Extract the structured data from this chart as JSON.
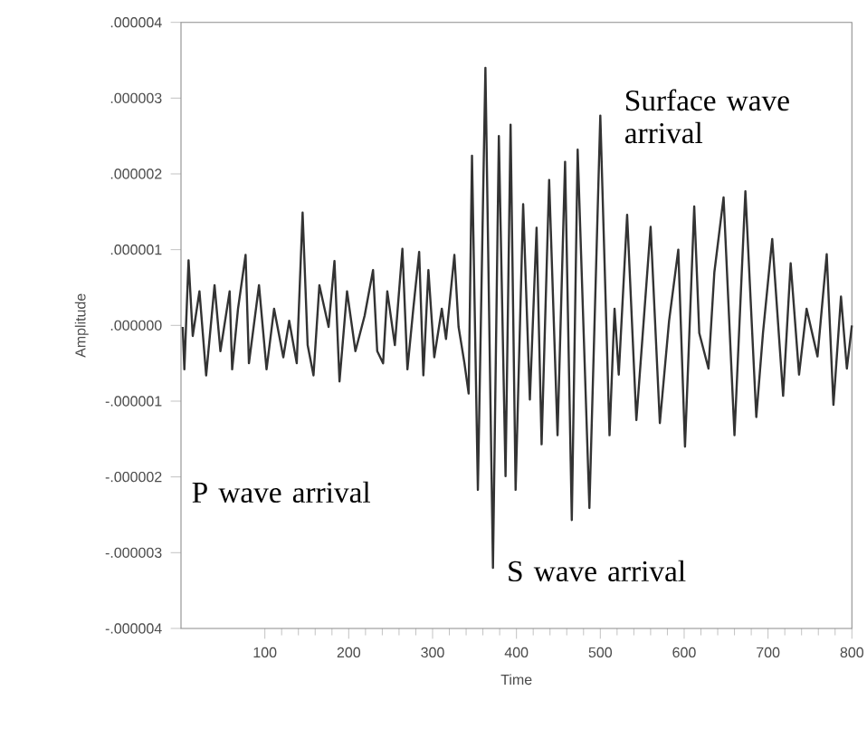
{
  "chart_data": {
    "type": "line",
    "xlabel": "Time",
    "ylabel": "Amplitude",
    "color": "#333333",
    "x": [
      2,
      4,
      9,
      14,
      22,
      30,
      40,
      47,
      58,
      61,
      68,
      77,
      81,
      93,
      102,
      111,
      122,
      129,
      138,
      145,
      151,
      158,
      165,
      176,
      183,
      189,
      198,
      208,
      219,
      229,
      234,
      241,
      246,
      255,
      264,
      270,
      277,
      284,
      289,
      295,
      302,
      311,
      316,
      326,
      331,
      338,
      343,
      347,
      354,
      363,
      372,
      379,
      387,
      393,
      399,
      408,
      416,
      424,
      430,
      439,
      449,
      458,
      466,
      473,
      487,
      500,
      511,
      517,
      522,
      532,
      543,
      550,
      560,
      571,
      582,
      593,
      601,
      612,
      618,
      629,
      636,
      647,
      660,
      673,
      686,
      694,
      705,
      718,
      727,
      737,
      746,
      759,
      770,
      778,
      787,
      794,
      800
    ],
    "values": [
      -2e-08,
      -5.8e-07,
      8.6e-07,
      -1.4e-07,
      4.5e-07,
      -6.6e-07,
      5.3e-07,
      -3.4e-07,
      4.5e-07,
      -5.8e-07,
      2.2e-07,
      9.3e-07,
      -5e-07,
      5.3e-07,
      -5.8e-07,
      2.2e-07,
      -4.2e-07,
      6e-08,
      -5e-07,
      1.49e-06,
      -2.6e-07,
      -6.6e-07,
      5.3e-07,
      -2e-08,
      8.5e-07,
      -7.4e-07,
      4.5e-07,
      -3.4e-07,
      1.3e-07,
      7.3e-07,
      -3.4e-07,
      -5e-07,
      4.5e-07,
      -2.6e-07,
      1.01e-06,
      -5.8e-07,
      2.2e-07,
      9.7e-07,
      -6.6e-07,
      7.3e-07,
      -4.2e-07,
      2.2e-07,
      -1.8e-07,
      9.3e-07,
      -2e-08,
      -5e-07,
      -9e-07,
      2.24e-06,
      -2.17e-06,
      3.4e-06,
      -3.2e-06,
      2.5e-06,
      -1.99e-06,
      2.65e-06,
      -2.17e-06,
      1.6e-06,
      -9.8e-07,
      1.29e-06,
      -1.57e-06,
      1.92e-06,
      -1.45e-06,
      2.16e-06,
      -2.57e-06,
      2.32e-06,
      -2.41e-06,
      2.77e-06,
      -1.45e-06,
      2.2e-07,
      -6.5e-07,
      1.46e-06,
      -1.25e-06,
      -2e-07,
      1.3e-06,
      -1.29e-06,
      6e-08,
      1e-06,
      -1.6e-06,
      1.57e-06,
      -1e-07,
      -5.7e-07,
      7e-07,
      1.69e-06,
      -1.45e-06,
      1.77e-06,
      -1.21e-06,
      -1e-07,
      1.14e-06,
      -9.3e-07,
      8.2e-07,
      -6.5e-07,
      2.2e-07,
      -4.1e-07,
      9.4e-07,
      -1.05e-06,
      3.8e-07,
      -5.7e-07,
      0
    ],
    "xlim": [
      0,
      800
    ],
    "ylim": [
      -4e-06,
      4e-06
    ],
    "xticks": [
      100,
      200,
      300,
      400,
      500,
      600,
      700,
      800
    ],
    "yticks": [
      {
        "value": 4e-06,
        "label": ".000004"
      },
      {
        "value": 3e-06,
        "label": ".000003"
      },
      {
        "value": 2e-06,
        "label": ".000002"
      },
      {
        "value": 1e-06,
        "label": ".000001"
      },
      {
        "value": 0,
        "label": ".000000"
      },
      {
        "value": -1e-06,
        "label": "-.000001"
      },
      {
        "value": -2e-06,
        "label": "-.000002"
      },
      {
        "value": -3e-06,
        "label": "-.000003"
      },
      {
        "value": -4e-06,
        "label": "-.000004"
      }
    ],
    "annotations": [
      "P wave arrival",
      "S wave arrival",
      "Surface wave arrival"
    ]
  }
}
